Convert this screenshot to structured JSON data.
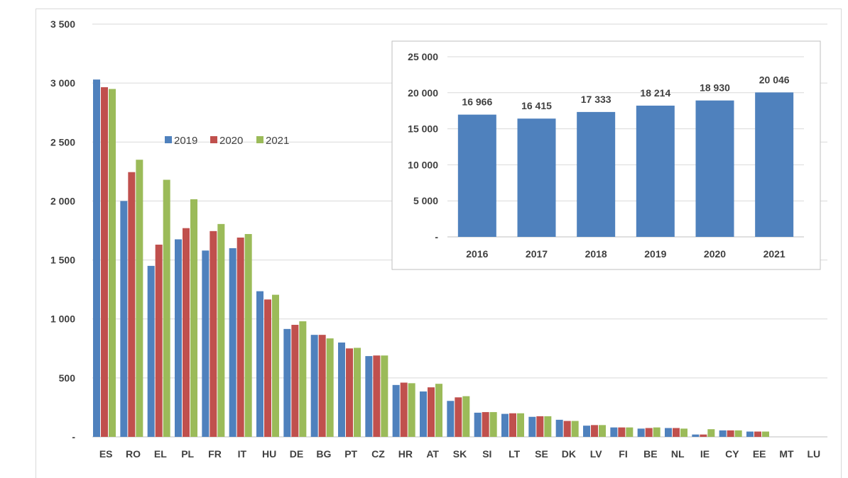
{
  "chart_data": [
    {
      "type": "bar",
      "title": "",
      "xlabel": "",
      "ylabel": "",
      "ylim": [
        0,
        3500
      ],
      "yticks": [
        "-",
        "500",
        "1 000",
        "1 500",
        "2 000",
        "2 500",
        "3 000",
        "3 500"
      ],
      "grid": true,
      "legend_position": "upper-left",
      "categories": [
        "ES",
        "RO",
        "EL",
        "PL",
        "FR",
        "IT",
        "HU",
        "DE",
        "BG",
        "PT",
        "CZ",
        "HR",
        "AT",
        "SK",
        "SI",
        "LT",
        "SE",
        "DK",
        "LV",
        "FI",
        "BE",
        "NL",
        "IE",
        "CY",
        "EE",
        "MT",
        "LU"
      ],
      "series": [
        {
          "name": "2019",
          "color": "#4f81bd",
          "values": [
            3030,
            2000,
            1450,
            1675,
            1580,
            1600,
            1235,
            915,
            865,
            800,
            685,
            440,
            385,
            305,
            205,
            195,
            170,
            145,
            95,
            80,
            70,
            75,
            20,
            55,
            45,
            0,
            0
          ]
        },
        {
          "name": "2020",
          "color": "#c0504d",
          "values": [
            2965,
            2245,
            1630,
            1770,
            1745,
            1690,
            1165,
            950,
            865,
            750,
            690,
            460,
            420,
            335,
            210,
            200,
            175,
            135,
            100,
            80,
            75,
            75,
            20,
            55,
            45,
            0,
            0
          ]
        },
        {
          "name": "2021",
          "color": "#9bbb59",
          "values": [
            2950,
            2350,
            2180,
            2015,
            1805,
            1720,
            1205,
            980,
            835,
            755,
            690,
            455,
            450,
            345,
            210,
            200,
            175,
            135,
            100,
            80,
            80,
            70,
            65,
            55,
            45,
            0,
            0
          ]
        }
      ]
    },
    {
      "type": "bar",
      "title": "",
      "xlabel": "",
      "ylabel": "",
      "ylim": [
        0,
        25000
      ],
      "yticks": [
        "-",
        "5 000",
        "10 000",
        "15 000",
        "20 000",
        "25 000"
      ],
      "grid": true,
      "color": "#4f81bd",
      "categories": [
        "2016",
        "2017",
        "2018",
        "2019",
        "2020",
        "2021"
      ],
      "values": [
        16966,
        16415,
        17333,
        18214,
        18930,
        20046
      ],
      "data_labels": [
        "16 966",
        "16 415",
        "17 333",
        "18 214",
        "18 930",
        "20 046"
      ]
    }
  ]
}
